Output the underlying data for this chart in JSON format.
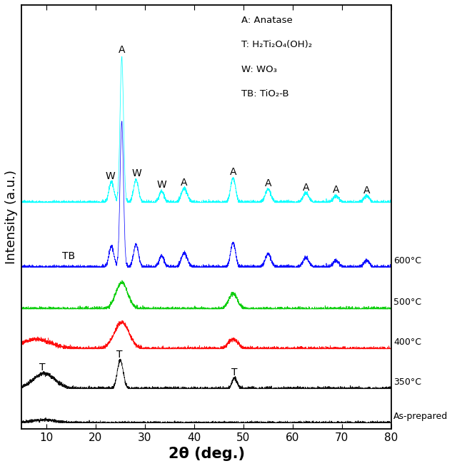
{
  "xlabel": "2θ (deg.)",
  "ylabel": "Intensity (a.u.)",
  "xlim": [
    5,
    80
  ],
  "x_ticks": [
    10,
    20,
    30,
    40,
    50,
    60,
    70,
    80
  ],
  "legend_text": [
    "A: Anatase",
    "T: H₂Ti₂O₄(OH)₂",
    "W: WO₃",
    "TB: TiO₂-B"
  ],
  "curve_colors": [
    "black",
    "black",
    "red",
    "#00cc00",
    "blue",
    "cyan"
  ],
  "offsets": [
    0.0,
    0.09,
    0.195,
    0.3,
    0.41,
    0.58
  ],
  "temp_labels": [
    "As-prepared",
    "350°C",
    "400°C",
    "500°C",
    "600°C"
  ],
  "background_color": "white",
  "noise_amplitude": 0.0025
}
